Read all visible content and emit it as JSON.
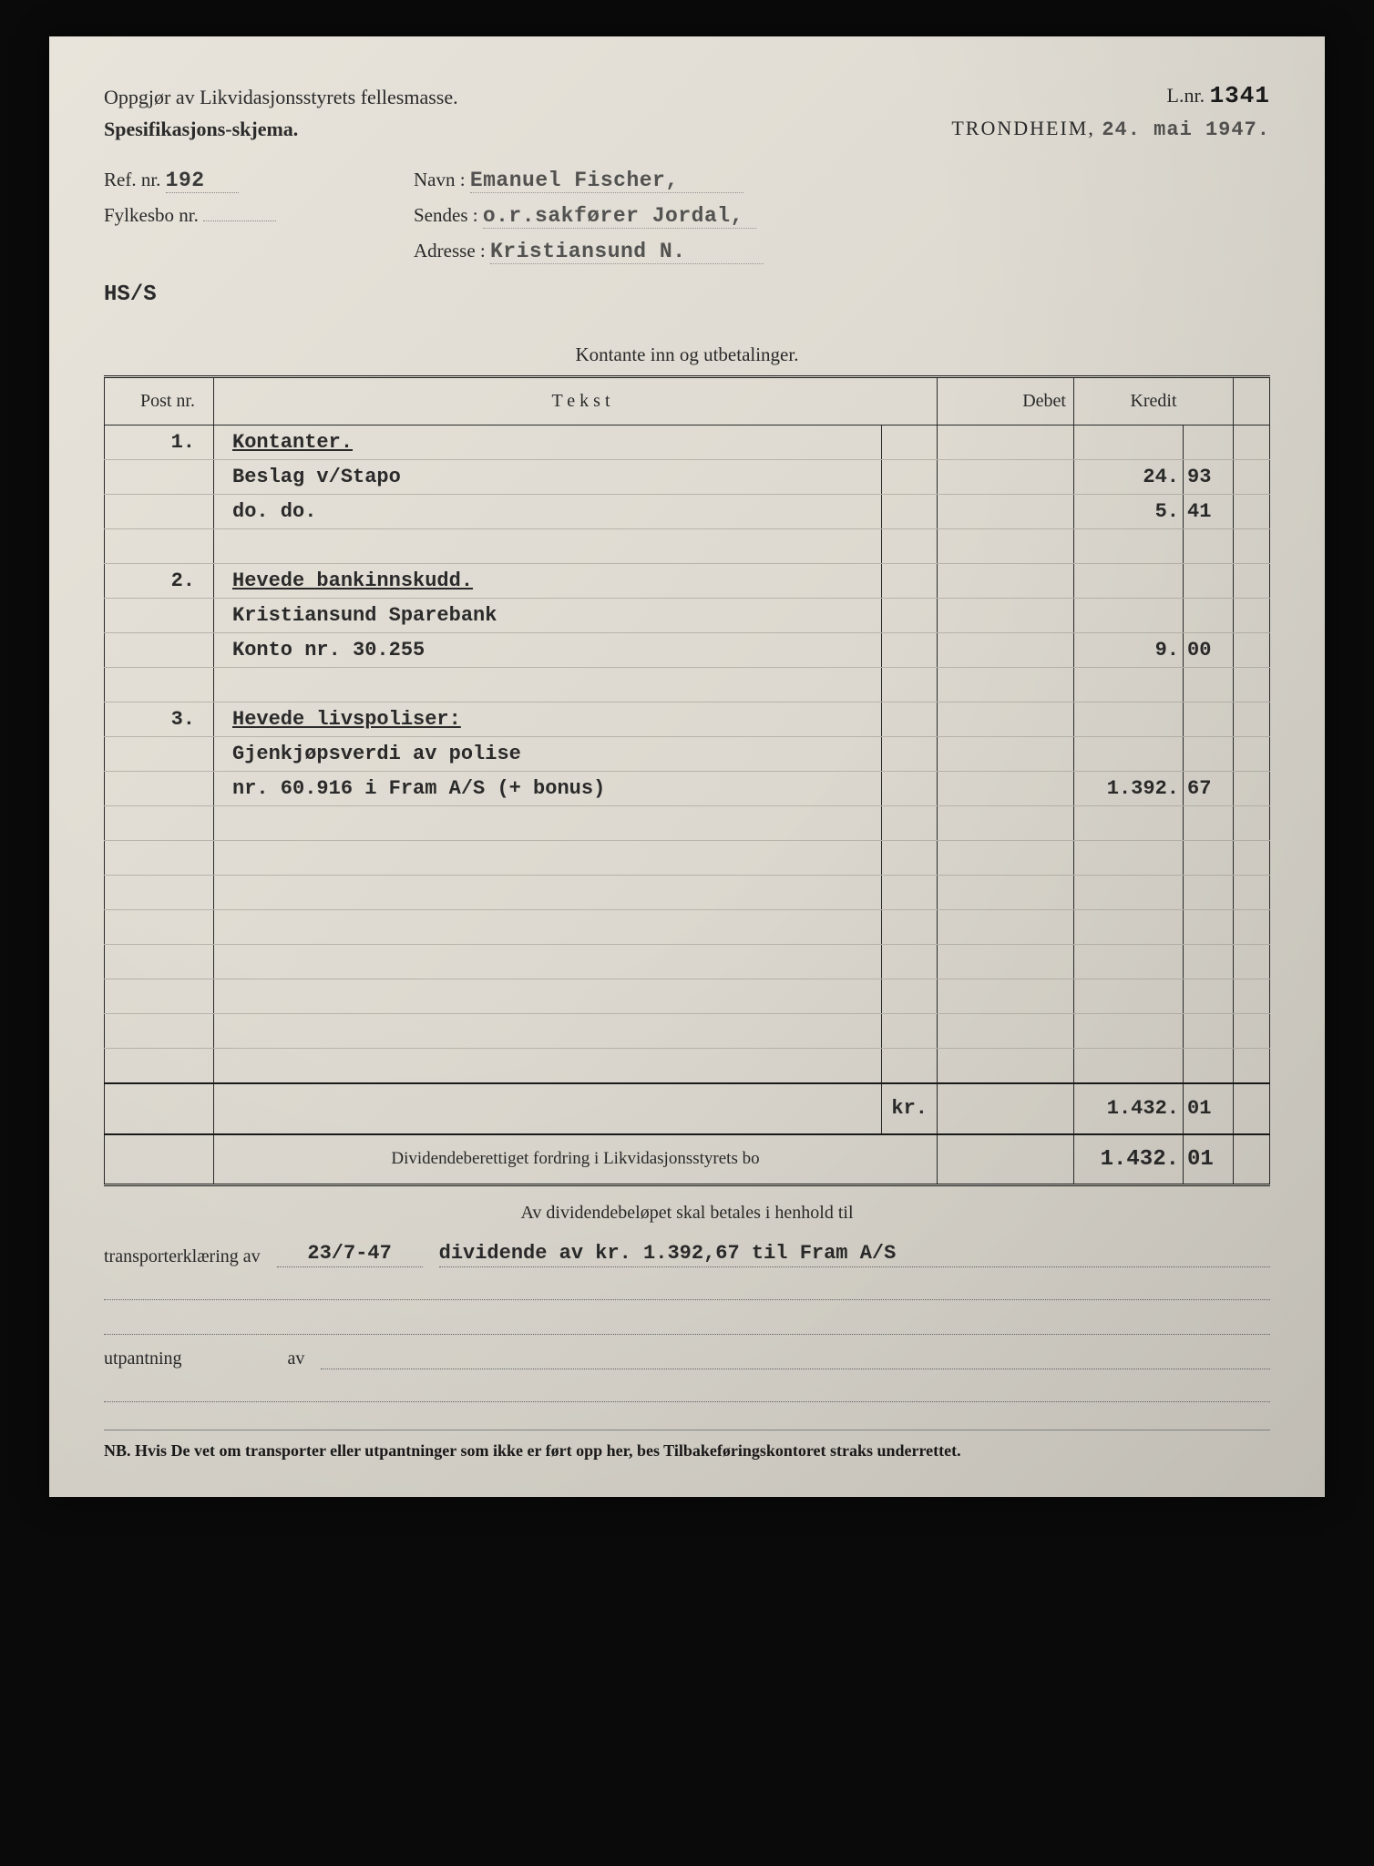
{
  "header": {
    "title": "Oppgjør av Likvidasjonsstyrets fellesmasse.",
    "subtitle": "Spesifikasjons-skjema.",
    "lnr_label": "L.nr.",
    "lnr_value": "1341",
    "location_label": "TRONDHEIM,",
    "location_date": "24. mai 1947."
  },
  "meta": {
    "ref_label": "Ref. nr.",
    "ref_value": "192",
    "navn_label": "Navn :",
    "navn_value": "Emanuel Fischer,",
    "fylkesbo_label": "Fylkesbo nr.",
    "fylkesbo_value": "",
    "sendes_label": "Sendes :",
    "sendes_value": "o.r.sakfører Jordal,",
    "adresse_label": "Adresse :",
    "adresse_value": "Kristiansund N.",
    "clerk": "HS/S"
  },
  "table": {
    "section_title": "Kontante inn og utbetalinger.",
    "headers": {
      "post": "Post nr.",
      "tekst": "T e k s t",
      "debet": "Debet",
      "kredit": "Kredit"
    },
    "rows": [
      {
        "post": "1.",
        "text": "Kontanter.",
        "underline": true
      },
      {
        "text": "Beslag v/Stapo",
        "kredit_int": "24.",
        "kredit_dec": "93"
      },
      {
        "text": "do.      do.",
        "kredit_int": "5.",
        "kredit_dec": "41"
      },
      {
        "blank": true
      },
      {
        "post": "2.",
        "text": "Hevede bankinnskudd.",
        "underline": true
      },
      {
        "text": "Kristiansund Sparebank"
      },
      {
        "text": "Konto nr. 30.255",
        "kredit_int": "9.",
        "kredit_dec": "00"
      },
      {
        "blank": true
      },
      {
        "post": "3.",
        "text": "Hevede livspoliser:",
        "underline": true
      },
      {
        "text": "Gjenkjøpsverdi av polise"
      },
      {
        "text": "nr. 60.916 i Fram A/S (+ bonus)",
        "kredit_int": "1.392.",
        "kredit_dec": "67"
      },
      {
        "blank": true
      },
      {
        "blank": true
      },
      {
        "blank": true
      },
      {
        "blank": true
      },
      {
        "blank": true
      },
      {
        "blank": true
      },
      {
        "blank": true
      },
      {
        "blank": true
      }
    ],
    "sum_label": "kr.",
    "sum_int": "1.432.",
    "sum_dec": "01",
    "dividend_label": "Dividendeberettiget fordring i Likvidasjonsstyrets bo",
    "dividend_int": "1.432.",
    "dividend_dec": "01"
  },
  "footer": {
    "center_text": "Av dividendebeløpet skal betales i henhold til",
    "transport_label": "transporterklæring av",
    "transport_date": "23/7-47",
    "transport_text": "dividende av kr. 1.392,67 til Fram A/S",
    "utpantning_label": "utpantning",
    "av_label": "av",
    "nb": "NB. Hvis De vet om transporter eller utpantninger som ikke er ført opp her, bes Tilbakeføringskontoret straks underrettet."
  },
  "colors": {
    "paper": "#e0dcd3",
    "ink": "#2a2a2a",
    "typed": "#3a3a3a",
    "rule": "#1a1a1a",
    "faint_rule": "#b8b4ab"
  }
}
